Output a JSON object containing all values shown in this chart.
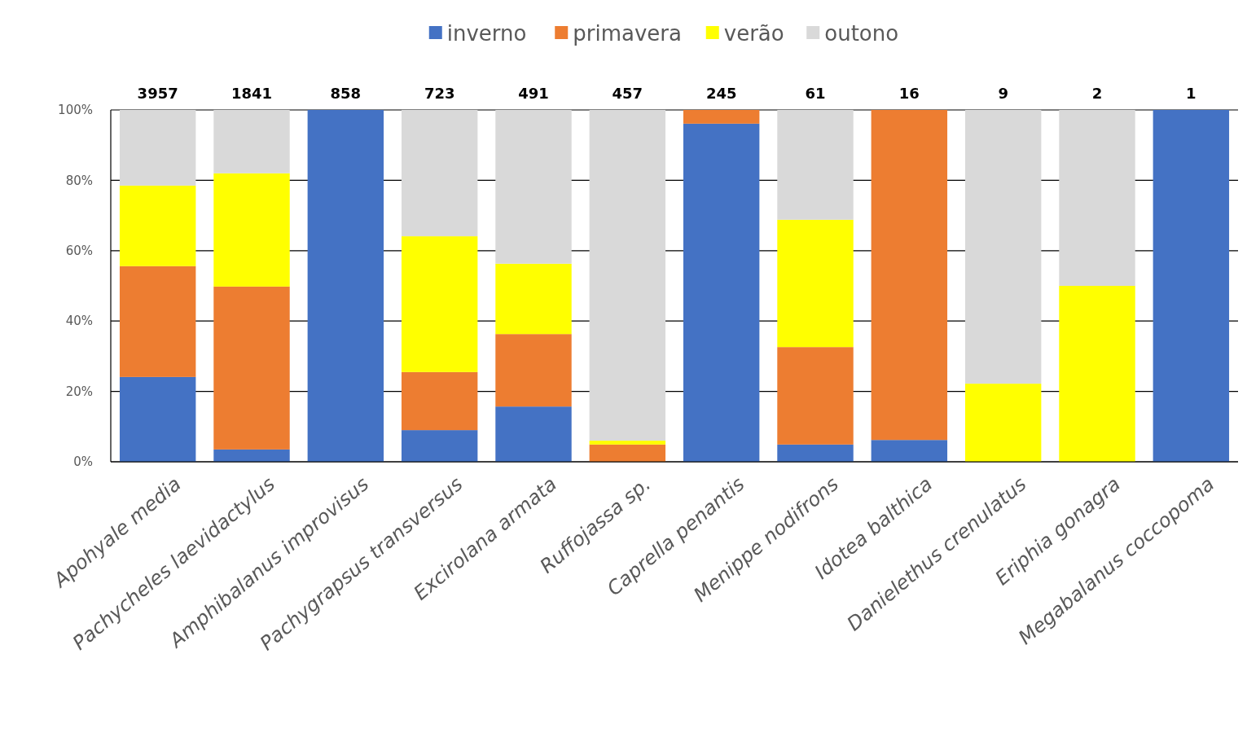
{
  "chart_data": {
    "type": "bar",
    "stacked": true,
    "categories": [
      "Apohyale media",
      "Pachycheles laevidactylus",
      "Amphibalanus improvisus",
      "Pachygrapsus transversus",
      "Excirolana armata",
      "Ruffojassa sp.",
      "Caprella penantis",
      "Menippe nodifrons",
      "Idotea balthica",
      "Danielethus crenulatus",
      "Eriphia gonagra",
      "Megabalanus coccopoma"
    ],
    "series": [
      {
        "name": "inverno",
        "color": "#4472c4",
        "values": [
          24.1,
          3.5,
          100,
          9.0,
          15.7,
          0,
          96.1,
          4.9,
          6.2,
          0,
          0,
          100
        ]
      },
      {
        "name": "primavera",
        "color": "#ed7d31",
        "values": [
          31.5,
          46.3,
          0,
          16.5,
          20.6,
          4.9,
          3.9,
          27.7,
          93.8,
          0,
          0,
          0
        ]
      },
      {
        "name": "verão",
        "color": "#ffff00",
        "values": [
          22.9,
          32.2,
          0,
          38.6,
          20.0,
          1.1,
          0,
          36.2,
          0,
          22.2,
          50,
          0
        ]
      },
      {
        "name": "outono",
        "color": "#d9d9d9",
        "values": [
          21.5,
          18.0,
          0,
          35.9,
          43.7,
          94.0,
          0,
          31.2,
          0,
          77.8,
          50,
          0
        ]
      }
    ],
    "annotations": [
      {
        "text": "3957",
        "x": "Apohyale media",
        "y": 100
      },
      {
        "text": "1841",
        "x": "Pachycheles laevidactylus",
        "y": 100
      },
      {
        "text": "858",
        "x": "Amphibalanus improvisus",
        "y": 100
      },
      {
        "text": "723",
        "x": "Pachygrapsus transversus",
        "y": 100
      },
      {
        "text": "491",
        "x": "Excirolana armata",
        "y": 100
      },
      {
        "text": "457",
        "x": "Ruffojassa sp.",
        "y": 100
      },
      {
        "text": "245",
        "x": "Caprella penantis",
        "y": 100
      },
      {
        "text": "61",
        "x": "Menippe nodifrons",
        "y": 100
      },
      {
        "text": "16",
        "x": "Idotea balthica",
        "y": 100
      },
      {
        "text": "9",
        "x": "Danielethus crenulatus",
        "y": 100
      },
      {
        "text": "2",
        "x": "Eriphia gonagra",
        "y": 100
      },
      {
        "text": "1",
        "x": "Megabalanus coccopoma",
        "y": 100
      }
    ],
    "ylim": [
      0,
      100
    ],
    "yticks": [
      {
        "value": 0,
        "label": "0%"
      },
      {
        "value": 20,
        "label": "20%"
      },
      {
        "value": 40,
        "label": "40%"
      },
      {
        "value": 60,
        "label": "60%"
      },
      {
        "value": 80,
        "label": "80%"
      },
      {
        "value": 100,
        "label": "100%"
      }
    ],
    "grid": "y",
    "legend": "top"
  }
}
